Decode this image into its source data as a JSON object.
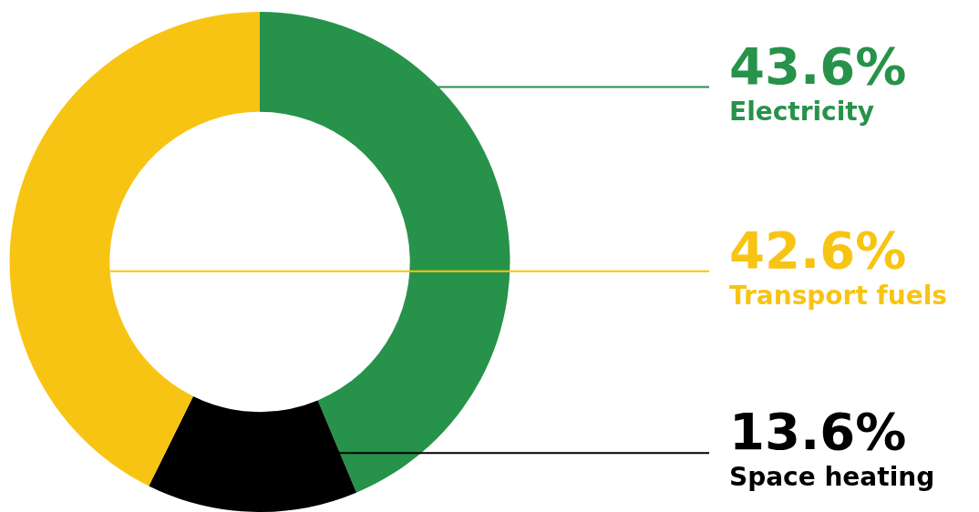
{
  "chart_data": {
    "type": "donut",
    "categories": [
      "Electricity",
      "Space heating",
      "Transport fuels"
    ],
    "values": [
      43.6,
      13.6,
      42.6
    ],
    "colors": [
      "#27924a",
      "#000000",
      "#f8c413"
    ],
    "value_labels": [
      "43.6%",
      "13.6%",
      "42.6%"
    ]
  }
}
